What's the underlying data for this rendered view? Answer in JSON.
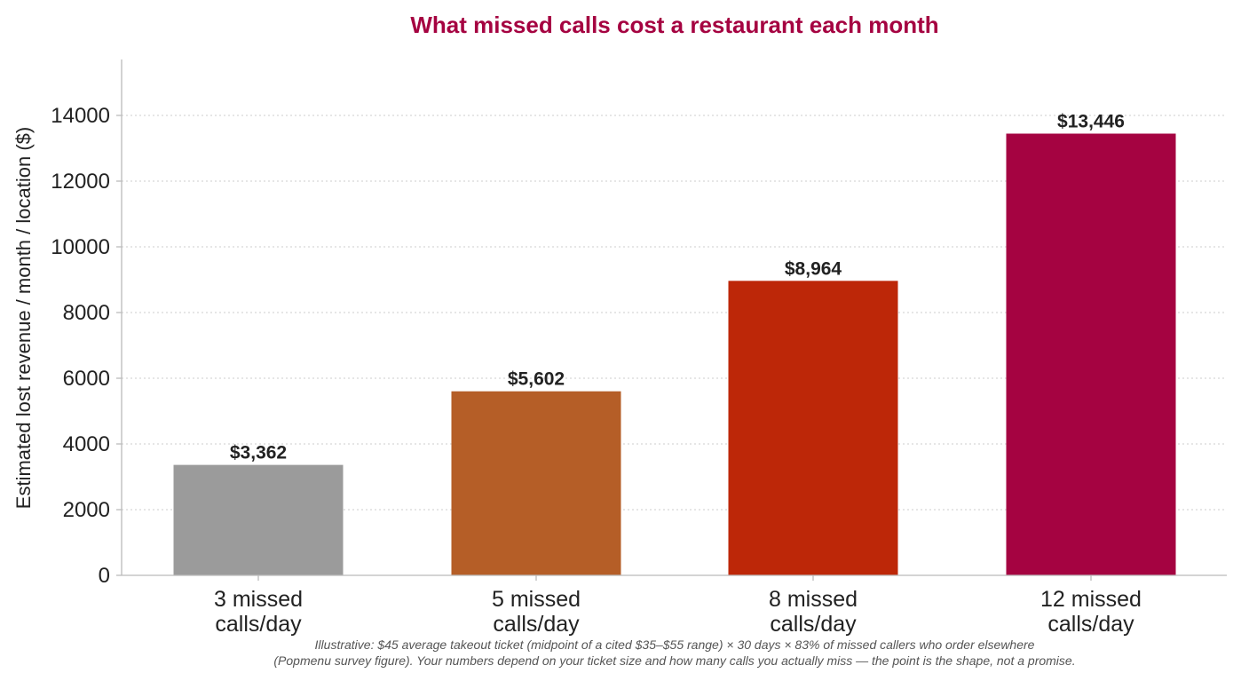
{
  "chart_data": {
    "type": "bar",
    "title": "What missed calls cost a restaurant each month",
    "xlabel": "",
    "ylabel": "Estimated lost revenue / month / location ($)",
    "ylim": [
      0,
      15600
    ],
    "yticks": [
      "0",
      "2000",
      "4000",
      "6000",
      "8000",
      "10000",
      "12000",
      "14000"
    ],
    "ytick_values": [
      0,
      2000,
      4000,
      6000,
      8000,
      10000,
      12000,
      14000
    ],
    "grid": "horizontal-dotted",
    "categories": [
      [
        "3 missed",
        "calls/day"
      ],
      [
        "5 missed",
        "calls/day"
      ],
      [
        "8 missed",
        "calls/day"
      ],
      [
        "12 missed",
        "calls/day"
      ]
    ],
    "values": [
      3362,
      5602,
      8964,
      13446
    ],
    "value_labels": [
      "$3,362",
      "$5,602",
      "$8,964",
      "$13,446"
    ],
    "colors": [
      "#9b9b9b",
      "#b55e27",
      "#bd2708",
      "#a50341"
    ],
    "footnote": [
      "Illustrative: $45 average takeout ticket (midpoint of a cited $35–$55 range) × 30 days × 83% of missed callers who order elsewhere",
      "(Popmenu survey figure). Your numbers depend on your ticket size and how many calls you actually miss — the point is the shape, not a promise."
    ]
  }
}
